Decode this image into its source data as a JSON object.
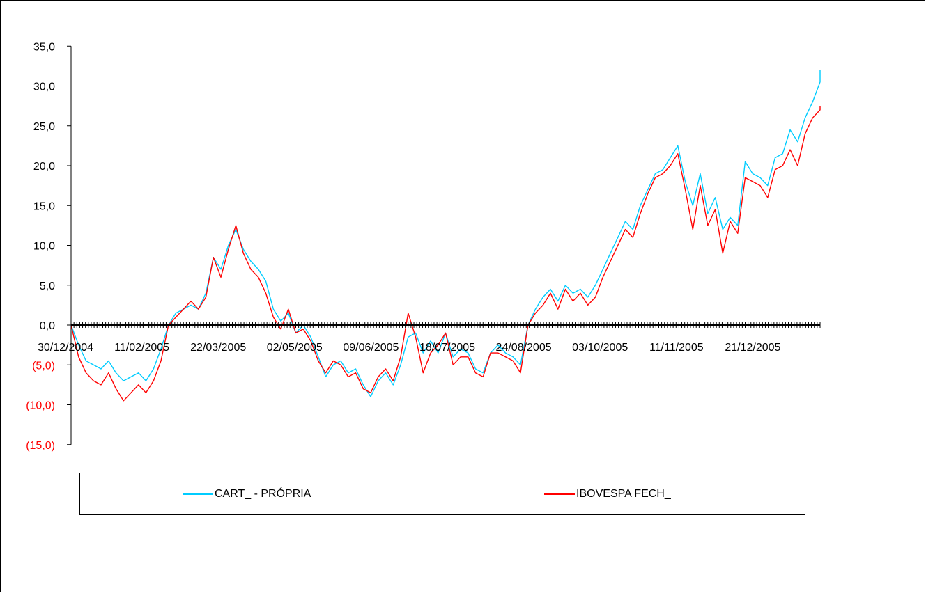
{
  "chart_data": {
    "type": "line",
    "title": "",
    "xlabel": "",
    "ylabel": "",
    "ylim": [
      -15,
      35
    ],
    "y_ticks": [
      35,
      30,
      25,
      20,
      15,
      10,
      5,
      0,
      -5,
      -10,
      -15
    ],
    "y_tick_labels": [
      "35,0",
      "30,0",
      "25,0",
      "20,0",
      "15,0",
      "10,0",
      "5,0",
      "0,0",
      "(5,0)",
      "(10,0)",
      "(15,0)"
    ],
    "negative_label_color": "#ff0000",
    "x_tick_labels": [
      "30/12/2004",
      "11/02/2005",
      "22/03/2005",
      "02/05/2005",
      "09/06/2005",
      "18/07/2005",
      "24/08/2005",
      "03/10/2005",
      "11/11/2005",
      "21/12/2005"
    ],
    "legend_position": "bottom",
    "series": [
      {
        "name": "CART_ - PRÓPRIA",
        "color": "#00ccff",
        "x": [
          0,
          0.01,
          0.02,
          0.03,
          0.04,
          0.05,
          0.06,
          0.07,
          0.08,
          0.09,
          0.1,
          0.11,
          0.12,
          0.13,
          0.14,
          0.15,
          0.16,
          0.17,
          0.18,
          0.19,
          0.2,
          0.21,
          0.22,
          0.23,
          0.24,
          0.25,
          0.26,
          0.27,
          0.28,
          0.29,
          0.3,
          0.31,
          0.32,
          0.33,
          0.34,
          0.35,
          0.36,
          0.37,
          0.38,
          0.39,
          0.4,
          0.41,
          0.42,
          0.43,
          0.44,
          0.45,
          0.46,
          0.47,
          0.48,
          0.49,
          0.5,
          0.51,
          0.52,
          0.53,
          0.54,
          0.55,
          0.56,
          0.57,
          0.58,
          0.59,
          0.6,
          0.61,
          0.62,
          0.63,
          0.64,
          0.65,
          0.66,
          0.67,
          0.68,
          0.69,
          0.7,
          0.71,
          0.72,
          0.73,
          0.74,
          0.75,
          0.76,
          0.77,
          0.78,
          0.79,
          0.8,
          0.81,
          0.82,
          0.83,
          0.84,
          0.85,
          0.86,
          0.87,
          0.88,
          0.89,
          0.9,
          0.91,
          0.92,
          0.93,
          0.94,
          0.95,
          0.96,
          0.97,
          0.98,
          0.99,
          1.0
        ],
        "values": [
          0.0,
          -2.5,
          -4.5,
          -5.0,
          -5.5,
          -4.5,
          -6.0,
          -7.0,
          -6.5,
          -6.0,
          -7.0,
          -5.5,
          -3.0,
          0.0,
          1.5,
          2.0,
          2.5,
          2.0,
          4.0,
          8.5,
          7.0,
          10.0,
          12.0,
          9.5,
          8.0,
          7.0,
          5.5,
          2.0,
          0.5,
          1.5,
          -1.0,
          0.0,
          -1.5,
          -4.0,
          -6.5,
          -5.0,
          -4.5,
          -6.0,
          -5.5,
          -7.5,
          -9.0,
          -7.0,
          -6.0,
          -7.5,
          -5.0,
          -1.5,
          -1.0,
          -3.5,
          -2.0,
          -3.5,
          -1.0,
          -4.0,
          -3.0,
          -3.5,
          -5.5,
          -6.0,
          -3.5,
          -2.5,
          -3.5,
          -4.0,
          -5.0,
          0.0,
          2.0,
          3.5,
          4.5,
          3.0,
          5.0,
          4.0,
          4.5,
          3.5,
          5.0,
          7.0,
          9.0,
          11.0,
          13.0,
          12.0,
          15.0,
          17.0,
          19.0,
          19.5,
          21.0,
          22.5,
          18.0,
          15.0,
          19.0,
          14.0,
          16.0,
          12.0,
          13.5,
          12.5,
          20.5,
          19.0,
          18.5,
          17.5,
          21.0,
          21.5,
          24.5,
          23.0,
          26.0,
          28.0,
          30.5
        ],
        "end_value": 32.0
      },
      {
        "name": "IBOVESPA FECH_",
        "color": "#ff0000",
        "x": [
          0,
          0.01,
          0.02,
          0.03,
          0.04,
          0.05,
          0.06,
          0.07,
          0.08,
          0.09,
          0.1,
          0.11,
          0.12,
          0.13,
          0.14,
          0.15,
          0.16,
          0.17,
          0.18,
          0.19,
          0.2,
          0.21,
          0.22,
          0.23,
          0.24,
          0.25,
          0.26,
          0.27,
          0.28,
          0.29,
          0.3,
          0.31,
          0.32,
          0.33,
          0.34,
          0.35,
          0.36,
          0.37,
          0.38,
          0.39,
          0.4,
          0.41,
          0.42,
          0.43,
          0.44,
          0.45,
          0.46,
          0.47,
          0.48,
          0.49,
          0.5,
          0.51,
          0.52,
          0.53,
          0.54,
          0.55,
          0.56,
          0.57,
          0.58,
          0.59,
          0.6,
          0.61,
          0.62,
          0.63,
          0.64,
          0.65,
          0.66,
          0.67,
          0.68,
          0.69,
          0.7,
          0.71,
          0.72,
          0.73,
          0.74,
          0.75,
          0.76,
          0.77,
          0.78,
          0.79,
          0.8,
          0.81,
          0.82,
          0.83,
          0.84,
          0.85,
          0.86,
          0.87,
          0.88,
          0.89,
          0.9,
          0.91,
          0.92,
          0.93,
          0.94,
          0.95,
          0.96,
          0.97,
          0.98,
          0.99,
          1.0
        ],
        "values": [
          0.0,
          -4.0,
          -6.0,
          -7.0,
          -7.5,
          -6.0,
          -8.0,
          -9.5,
          -8.5,
          -7.5,
          -8.5,
          -7.0,
          -4.5,
          0.0,
          1.0,
          2.0,
          3.0,
          2.0,
          3.5,
          8.5,
          6.0,
          9.5,
          12.5,
          9.0,
          7.0,
          6.0,
          4.0,
          1.0,
          -0.5,
          2.0,
          -1.0,
          -0.5,
          -2.0,
          -4.5,
          -6.0,
          -4.5,
          -5.0,
          -6.5,
          -6.0,
          -8.0,
          -8.5,
          -6.5,
          -5.5,
          -7.0,
          -4.0,
          1.5,
          -1.5,
          -6.0,
          -3.5,
          -2.5,
          -1.0,
          -5.0,
          -4.0,
          -4.0,
          -6.0,
          -6.5,
          -3.5,
          -3.5,
          -4.0,
          -4.5,
          -6.0,
          0.0,
          1.5,
          2.5,
          4.0,
          2.0,
          4.5,
          3.0,
          4.0,
          2.5,
          3.5,
          6.0,
          8.0,
          10.0,
          12.0,
          11.0,
          14.0,
          16.5,
          18.5,
          19.0,
          20.0,
          21.5,
          17.0,
          12.0,
          17.5,
          12.5,
          14.5,
          9.0,
          13.0,
          11.5,
          18.5,
          18.0,
          17.5,
          16.0,
          19.5,
          20.0,
          22.0,
          20.0,
          24.0,
          26.0,
          27.0
        ],
        "end_value": 27.5
      }
    ]
  }
}
